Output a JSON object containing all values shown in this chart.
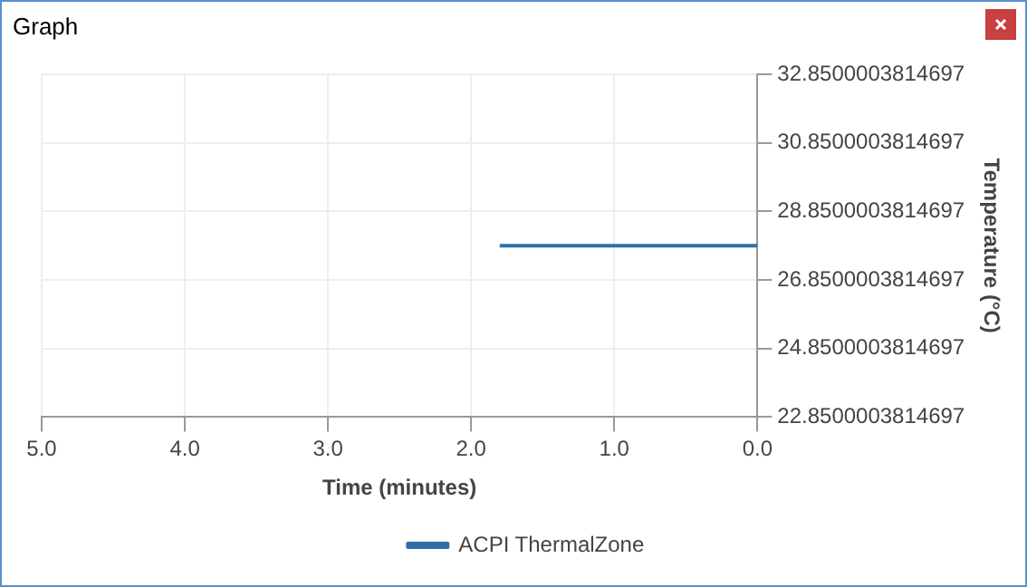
{
  "chart_data": {
    "type": "line",
    "title": "Graph",
    "xlabel": "Time (minutes)",
    "ylabel": "Temperature (°C)",
    "xlim": [
      5,
      0
    ],
    "xticks": [
      {
        "value": 5,
        "label": "5.0"
      },
      {
        "value": 4,
        "label": "4.0"
      },
      {
        "value": 3,
        "label": "3.0"
      },
      {
        "value": 2,
        "label": "2.0"
      },
      {
        "value": 1,
        "label": "1.0"
      },
      {
        "value": 0,
        "label": "0.0"
      }
    ],
    "ylim": [
      22.8500003814697,
      32.8500003814697
    ],
    "yticks": [
      22.8500003814697,
      24.8500003814697,
      26.8500003814697,
      28.8500003814697,
      30.8500003814697,
      32.8500003814697
    ],
    "series": [
      {
        "name": "ACPI ThermalZone",
        "color": "#2e6fa7",
        "x": [
          1.8,
          0
        ],
        "values": [
          27.85,
          27.85
        ]
      }
    ],
    "grid": true,
    "legend": "bottom",
    "marker": "none",
    "line_style": "solid"
  }
}
